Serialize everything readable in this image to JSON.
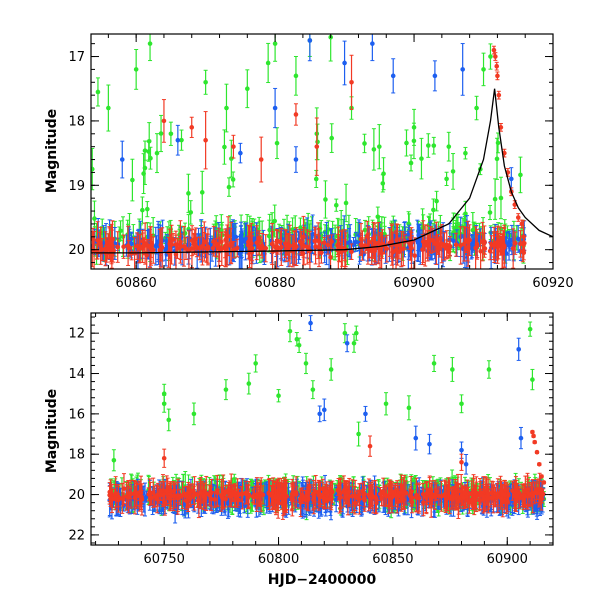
{
  "colors": {
    "green": "#2ee62e",
    "blue": "#1d5ff0",
    "red": "#f23a24",
    "model": "#000000"
  },
  "chart_data": [
    {
      "type": "scatter",
      "title": "",
      "xlabel": "",
      "ylabel": "Magnitude",
      "xlim": [
        60853.5,
        60920
      ],
      "ylim": [
        20.3,
        16.65
      ],
      "y_inverted": true,
      "xticks": [
        60860,
        60880,
        60900,
        60920
      ],
      "yticks": [
        17,
        18,
        19,
        20
      ],
      "series": [
        {
          "color": "green",
          "style": "points_with_errorbars",
          "x_range": [
            60853.5,
            60916
          ],
          "baseline_mag": 19.8,
          "scatter_to_mag": 16.7,
          "outliers": [
            [
              60854.5,
              17.55
            ],
            [
              60856,
              17.8
            ],
            [
              60860,
              17.2
            ],
            [
              60862,
              16.8
            ],
            [
              60863,
              18.5
            ],
            [
              60865,
              18.2
            ],
            [
              60870,
              17.4
            ],
            [
              60873,
              17.8
            ],
            [
              60876,
              17.5
            ],
            [
              60879,
              17.1
            ],
            [
              60880,
              16.8
            ],
            [
              60883,
              17.3
            ],
            [
              60885,
              16.75
            ],
            [
              60886,
              18.2
            ],
            [
              60888,
              16.7
            ],
            [
              60891,
              17.8
            ],
            [
              60895,
              18.4
            ],
            [
              60900,
              18.1
            ],
            [
              60905,
              18.4
            ],
            [
              60909,
              17.8
            ],
            [
              60910,
              17.2
            ],
            [
              60911,
              17.0
            ]
          ]
        },
        {
          "color": "blue",
          "style": "points_with_errorbars",
          "x_range": [
            60853.5,
            60916
          ],
          "baseline_mag": 19.9,
          "outliers": [
            [
              60858,
              18.6
            ],
            [
              60866,
              18.3
            ],
            [
              60875,
              18.5
            ],
            [
              60880,
              17.8
            ],
            [
              60883,
              18.6
            ],
            [
              60885,
              16.75
            ],
            [
              60890,
              17.1
            ],
            [
              60894,
              16.8
            ],
            [
              60897,
              17.3
            ],
            [
              60903,
              17.3
            ],
            [
              60907,
              17.2
            ],
            [
              60914,
              18.9
            ]
          ]
        },
        {
          "color": "red",
          "style": "points_with_errorbars",
          "x_range": [
            60853.5,
            60916
          ],
          "baseline_mag": 19.95,
          "flare_points": [
            [
              60911.5,
              16.9
            ],
            [
              60911.7,
              17.0
            ],
            [
              60911.9,
              17.15
            ],
            [
              60912.0,
              17.3
            ],
            [
              60912.2,
              17.6
            ],
            [
              60912.5,
              18.1
            ],
            [
              60913,
              18.5
            ],
            [
              60913.5,
              18.8
            ],
            [
              60914,
              19.1
            ],
            [
              60914.5,
              19.3
            ],
            [
              60915,
              19.5
            ],
            [
              60915.5,
              19.6
            ]
          ],
          "outliers": [
            [
              60864,
              18.0
            ],
            [
              60868,
              18.1
            ],
            [
              60870,
              18.3
            ],
            [
              60874,
              18.4
            ],
            [
              60878,
              18.6
            ],
            [
              60883,
              17.9
            ],
            [
              60886,
              18.4
            ],
            [
              60891,
              17.4
            ]
          ]
        }
      ],
      "model_curve": [
        [
          60853.5,
          20.05
        ],
        [
          60860,
          20.05
        ],
        [
          60880,
          20.02
        ],
        [
          60890,
          20.0
        ],
        [
          60895,
          19.95
        ],
        [
          60900,
          19.85
        ],
        [
          60905,
          19.6
        ],
        [
          60908,
          19.2
        ],
        [
          60910,
          18.6
        ],
        [
          60911,
          18.0
        ],
        [
          60911.6,
          17.5
        ],
        [
          60912.2,
          18.1
        ],
        [
          60913,
          18.7
        ],
        [
          60914,
          19.1
        ],
        [
          60915,
          19.35
        ],
        [
          60916,
          19.5
        ],
        [
          60918,
          19.7
        ],
        [
          60920,
          19.8
        ]
      ]
    },
    {
      "type": "scatter",
      "title": "",
      "xlabel": "HJD−2400000",
      "ylabel": "Magnitude",
      "xlim": [
        60718,
        60920
      ],
      "ylim": [
        22.5,
        11
      ],
      "y_inverted": true,
      "xticks": [
        60750,
        60800,
        60850,
        60900
      ],
      "yticks": [
        12,
        14,
        16,
        18,
        20,
        22
      ],
      "series": [
        {
          "color": "green",
          "style": "points_with_errorbars",
          "x_range": [
            60726,
            60916
          ],
          "baseline_mag": 20.0,
          "outliers": [
            [
              60728,
              18.3
            ],
            [
              60750,
              15.5
            ],
            [
              60750,
              15.0
            ],
            [
              60752,
              16.3
            ],
            [
              60763,
              16.0
            ],
            [
              60777,
              14.8
            ],
            [
              60787,
              14.5
            ],
            [
              60790,
              13.5
            ],
            [
              60800,
              15.1
            ],
            [
              60805,
              11.9
            ],
            [
              60808,
              12.3
            ],
            [
              60809,
              12.6
            ],
            [
              60812,
              13.5
            ],
            [
              60815,
              14.8
            ],
            [
              60823,
              13.8
            ],
            [
              60829,
              12.0
            ],
            [
              60833,
              12.5
            ],
            [
              60834,
              12.0
            ],
            [
              60835,
              17.0
            ],
            [
              60847,
              15.5
            ],
            [
              60857,
              15.7
            ],
            [
              60868,
              13.5
            ],
            [
              60876,
              13.8
            ],
            [
              60880,
              15.5
            ],
            [
              60892,
              13.8
            ],
            [
              60910,
              11.8
            ],
            [
              60911,
              14.3
            ]
          ]
        },
        {
          "color": "blue",
          "style": "points_with_errorbars",
          "x_range": [
            60726,
            60916
          ],
          "baseline_mag": 20.2,
          "outliers": [
            [
              60814,
              11.5
            ],
            [
              60818,
              16.0
            ],
            [
              60820,
              15.8
            ],
            [
              60830,
              12.5
            ],
            [
              60838,
              16.0
            ],
            [
              60860,
              17.2
            ],
            [
              60866,
              17.5
            ],
            [
              60880,
              17.8
            ],
            [
              60882,
              18.5
            ],
            [
              60905,
              12.8
            ],
            [
              60906,
              17.2
            ]
          ]
        },
        {
          "color": "red",
          "style": "points_with_errorbars",
          "x_range": [
            60726,
            60916
          ],
          "baseline_mag": 20.05,
          "flare_points": [
            [
              60911,
              16.9
            ],
            [
              60911.5,
              17.1
            ],
            [
              60912,
              17.4
            ],
            [
              60913,
              17.9
            ],
            [
              60914,
              18.5
            ],
            [
              60915,
              19.1
            ],
            [
              60916,
              19.4
            ]
          ],
          "outliers": [
            [
              60750,
              18.2
            ],
            [
              60840,
              17.6
            ],
            [
              60880,
              18.4
            ]
          ]
        }
      ]
    }
  ]
}
